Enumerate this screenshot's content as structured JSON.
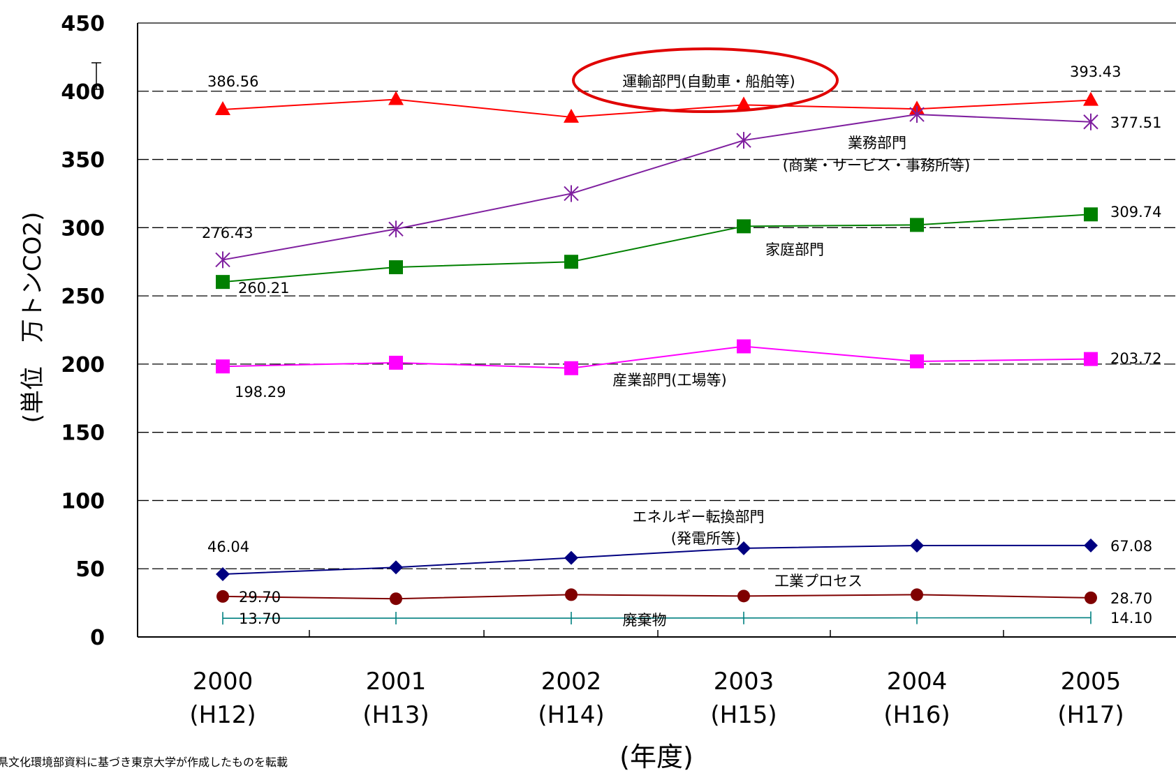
{
  "chart_data": {
    "type": "line",
    "ylabel": "(単位　万トンCO2)",
    "xlabel": "(年度)",
    "ylim": [
      0,
      450
    ],
    "yticks": [
      0,
      50,
      100,
      150,
      200,
      250,
      300,
      350,
      400,
      450
    ],
    "grid": "horizontal dashed",
    "categories": [
      {
        "year": "2000",
        "era": "(H12)"
      },
      {
        "year": "2001",
        "era": "(H13)"
      },
      {
        "year": "2002",
        "era": "(H14)"
      },
      {
        "year": "2003",
        "era": "(H15)"
      },
      {
        "year": "2004",
        "era": "(H16)"
      },
      {
        "year": "2005",
        "era": "(H17)"
      }
    ],
    "series": [
      {
        "key": "transport",
        "name": "運輸部門(自動車・船舶等)",
        "color": "#ff0000",
        "marker": "triangle",
        "values": [
          386.56,
          394,
          381,
          390,
          387,
          393.43
        ],
        "first_label": "386.56",
        "last_label": "393.43",
        "highlighted": true
      },
      {
        "key": "commercial",
        "name": "業務部門",
        "name_line2": "(商業・サービス・事務所等)",
        "color": "#7f1f9f",
        "marker": "asterisk",
        "values": [
          276.43,
          299,
          325,
          364,
          383,
          377.51
        ],
        "first_label": "276.43",
        "last_label": "377.51"
      },
      {
        "key": "household",
        "name": "家庭部門",
        "color": "#008000",
        "marker": "square",
        "values": [
          260.21,
          271,
          275,
          301,
          302,
          309.74
        ],
        "first_label": "260.21",
        "last_label": "309.74"
      },
      {
        "key": "industry",
        "name": "産業部門(工場等)",
        "color": "#ff00ff",
        "marker": "square",
        "values": [
          198.29,
          201,
          197,
          213,
          202,
          203.72
        ],
        "first_label": "198.29",
        "last_label": "203.72"
      },
      {
        "key": "energy",
        "name": "エネルギー転換部門",
        "name_line2": "(発電所等)",
        "color": "#000080",
        "marker": "diamond",
        "values": [
          46.04,
          51,
          58,
          65,
          67,
          67.08
        ],
        "first_label": "46.04",
        "last_label": "67.08"
      },
      {
        "key": "process",
        "name": "工業プロセス",
        "color": "#7f0000",
        "marker": "circle",
        "values": [
          29.7,
          28,
          31,
          30,
          31,
          28.7
        ],
        "first_label": "29.70",
        "last_label": "28.70"
      },
      {
        "key": "waste",
        "name": "廃棄物",
        "color": "#008080",
        "marker": "plus",
        "values": [
          13.7,
          13.8,
          13.8,
          13.9,
          14,
          14.1
        ],
        "first_label": "13.70",
        "last_label": "14.10"
      }
    ],
    "source_note": "県文化環境部資料に基づき東京大学が作成したものを転載"
  }
}
